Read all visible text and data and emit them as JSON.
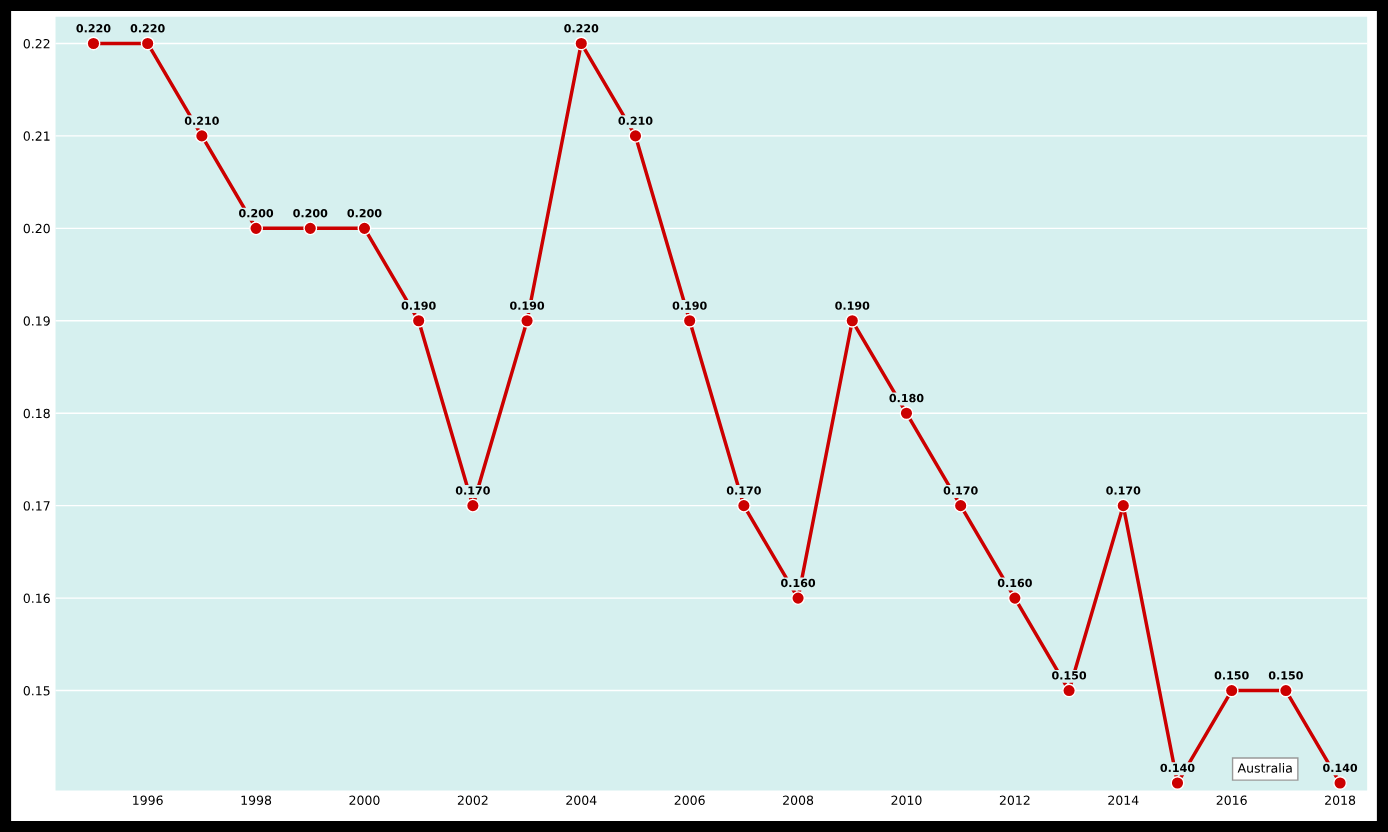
{
  "chart_data": {
    "type": "line",
    "x": [
      1995,
      1996,
      1997,
      1998,
      1999,
      2000,
      2001,
      2002,
      2003,
      2004,
      2005,
      2006,
      2007,
      2008,
      2009,
      2010,
      2011,
      2012,
      2013,
      2014,
      2015,
      2016,
      2017,
      2018
    ],
    "series": [
      {
        "name": "Australia",
        "color": "#cc0000",
        "values": [
          0.22,
          0.22,
          0.21,
          0.2,
          0.2,
          0.2,
          0.19,
          0.17,
          0.19,
          0.22,
          0.21,
          0.19,
          0.17,
          0.16,
          0.19,
          0.18,
          0.17,
          0.16,
          0.15,
          0.17,
          0.14,
          0.15,
          0.15,
          0.14
        ],
        "value_labels": [
          "0.220",
          "0.220",
          "0.210",
          "0.200",
          "0.200",
          "0.200",
          "0.190",
          "0.170",
          "0.190",
          "0.220",
          "0.210",
          "0.190",
          "0.170",
          "0.160",
          "0.190",
          "0.180",
          "0.170",
          "0.160",
          "0.150",
          "0.170",
          "0.140",
          "0.150",
          "0.150",
          "0.140"
        ]
      }
    ],
    "xlim": [
      1994.3,
      2018.5
    ],
    "xticks": [
      1996,
      1998,
      2000,
      2002,
      2004,
      2006,
      2008,
      2010,
      2012,
      2014,
      2016,
      2018
    ],
    "ylim": [
      0.1392,
      0.2229
    ],
    "yticks": [
      0.15,
      0.16,
      0.17,
      0.18,
      0.19,
      {
        "value": 0.2,
        "label": "0.20"
      },
      0.21,
      0.22
    ],
    "grid": "y",
    "marker": "circle",
    "line_style": "solid",
    "legend": false
  }
}
